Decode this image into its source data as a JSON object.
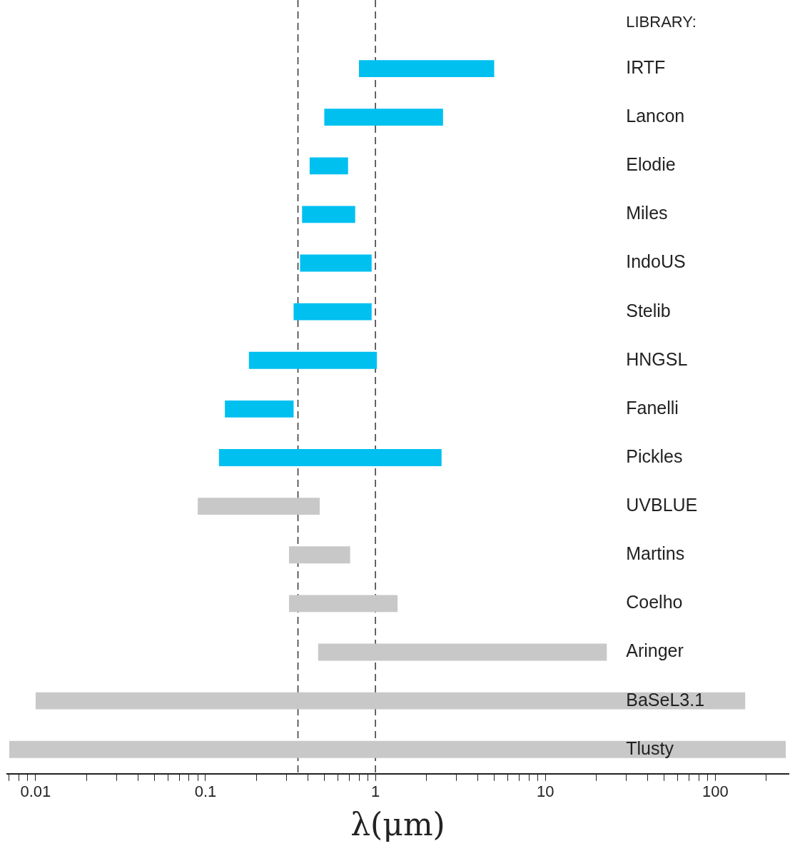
{
  "chart_data": {
    "type": "bar",
    "orientation": "horizontal",
    "ylabel": "LIBRARY:",
    "xlabel": "λ(μm)",
    "log": "x",
    "categories": [
      "IRTF",
      "Lancon",
      "Elodie",
      "Miles",
      "IndoUS",
      "Stelib",
      "HNGSL",
      "Fanelli",
      "Pickles",
      "UVBLUE",
      "Martins",
      "Coelho",
      "Aringer",
      "BaSeL3.1",
      "Tlusty"
    ],
    "base": [
      0.8,
      0.5,
      0.41,
      0.37,
      0.36,
      0.33,
      0.18,
      0.13,
      0.12,
      0.09,
      0.31,
      0.31,
      0.46,
      0.01,
      0.007
    ],
    "values": [
      4.2,
      2.0,
      0.28,
      0.39,
      0.59,
      0.62,
      0.84,
      0.2,
      2.33,
      0.38,
      0.4,
      1.04,
      22.54,
      149.99,
      259.993
    ],
    "colors": [
      "#00c0f0",
      "#00c0f0",
      "#00c0f0",
      "#00c0f0",
      "#00c0f0",
      "#00c0f0",
      "#00c0f0",
      "#00c0f0",
      "#00c0f0",
      "#c8c8c8",
      "#c8c8c8",
      "#c8c8c8",
      "#c8c8c8",
      "#c8c8c8",
      "#c8c8c8"
    ],
    "xlim": [
      0.0068,
      270
    ],
    "xticks": [
      {
        "value": 0.007,
        "label": null
      },
      {
        "value": 0.008,
        "label": null
      },
      {
        "value": 0.009,
        "label": null
      },
      0.01,
      {
        "value": 0.02,
        "label": null
      },
      {
        "value": 0.03,
        "label": null
      },
      {
        "value": 0.04,
        "label": null
      },
      {
        "value": 0.05,
        "label": null
      },
      {
        "value": 0.06,
        "label": null
      },
      {
        "value": 0.07,
        "label": null
      },
      {
        "value": 0.08,
        "label": null
      },
      {
        "value": 0.09,
        "label": null
      },
      0.1,
      {
        "value": 0.2,
        "label": null
      },
      {
        "value": 0.3,
        "label": null
      },
      {
        "value": 0.4,
        "label": null
      },
      {
        "value": 0.5,
        "label": null
      },
      {
        "value": 0.6,
        "label": null
      },
      {
        "value": 0.7,
        "label": null
      },
      {
        "value": 0.8,
        "label": null
      },
      {
        "value": 0.9,
        "label": null
      },
      1,
      {
        "value": 2,
        "label": null
      },
      {
        "value": 3,
        "label": null
      },
      {
        "value": 4,
        "label": null
      },
      {
        "value": 5,
        "label": null
      },
      {
        "value": 6,
        "label": null
      },
      {
        "value": 7,
        "label": null
      },
      {
        "value": 8,
        "label": null
      },
      {
        "value": 9,
        "label": null
      },
      10,
      {
        "value": 20,
        "label": null
      },
      {
        "value": 30,
        "label": null
      },
      {
        "value": 40,
        "label": null
      },
      {
        "value": 50,
        "label": null
      },
      {
        "value": 60,
        "label": null
      },
      {
        "value": 70,
        "label": null
      },
      {
        "value": 80,
        "label": null
      },
      {
        "value": 90,
        "label": null
      },
      100,
      {
        "value": 200,
        "label": null
      }
    ],
    "ref_lines": [
      {
        "axis": "x",
        "value": 0.35,
        "line_style": "dashed",
        "color": "#333333"
      },
      {
        "axis": "x",
        "value": 1,
        "line_style": "dashed",
        "color": "#333333"
      }
    ],
    "grid": false,
    "legend": false
  }
}
